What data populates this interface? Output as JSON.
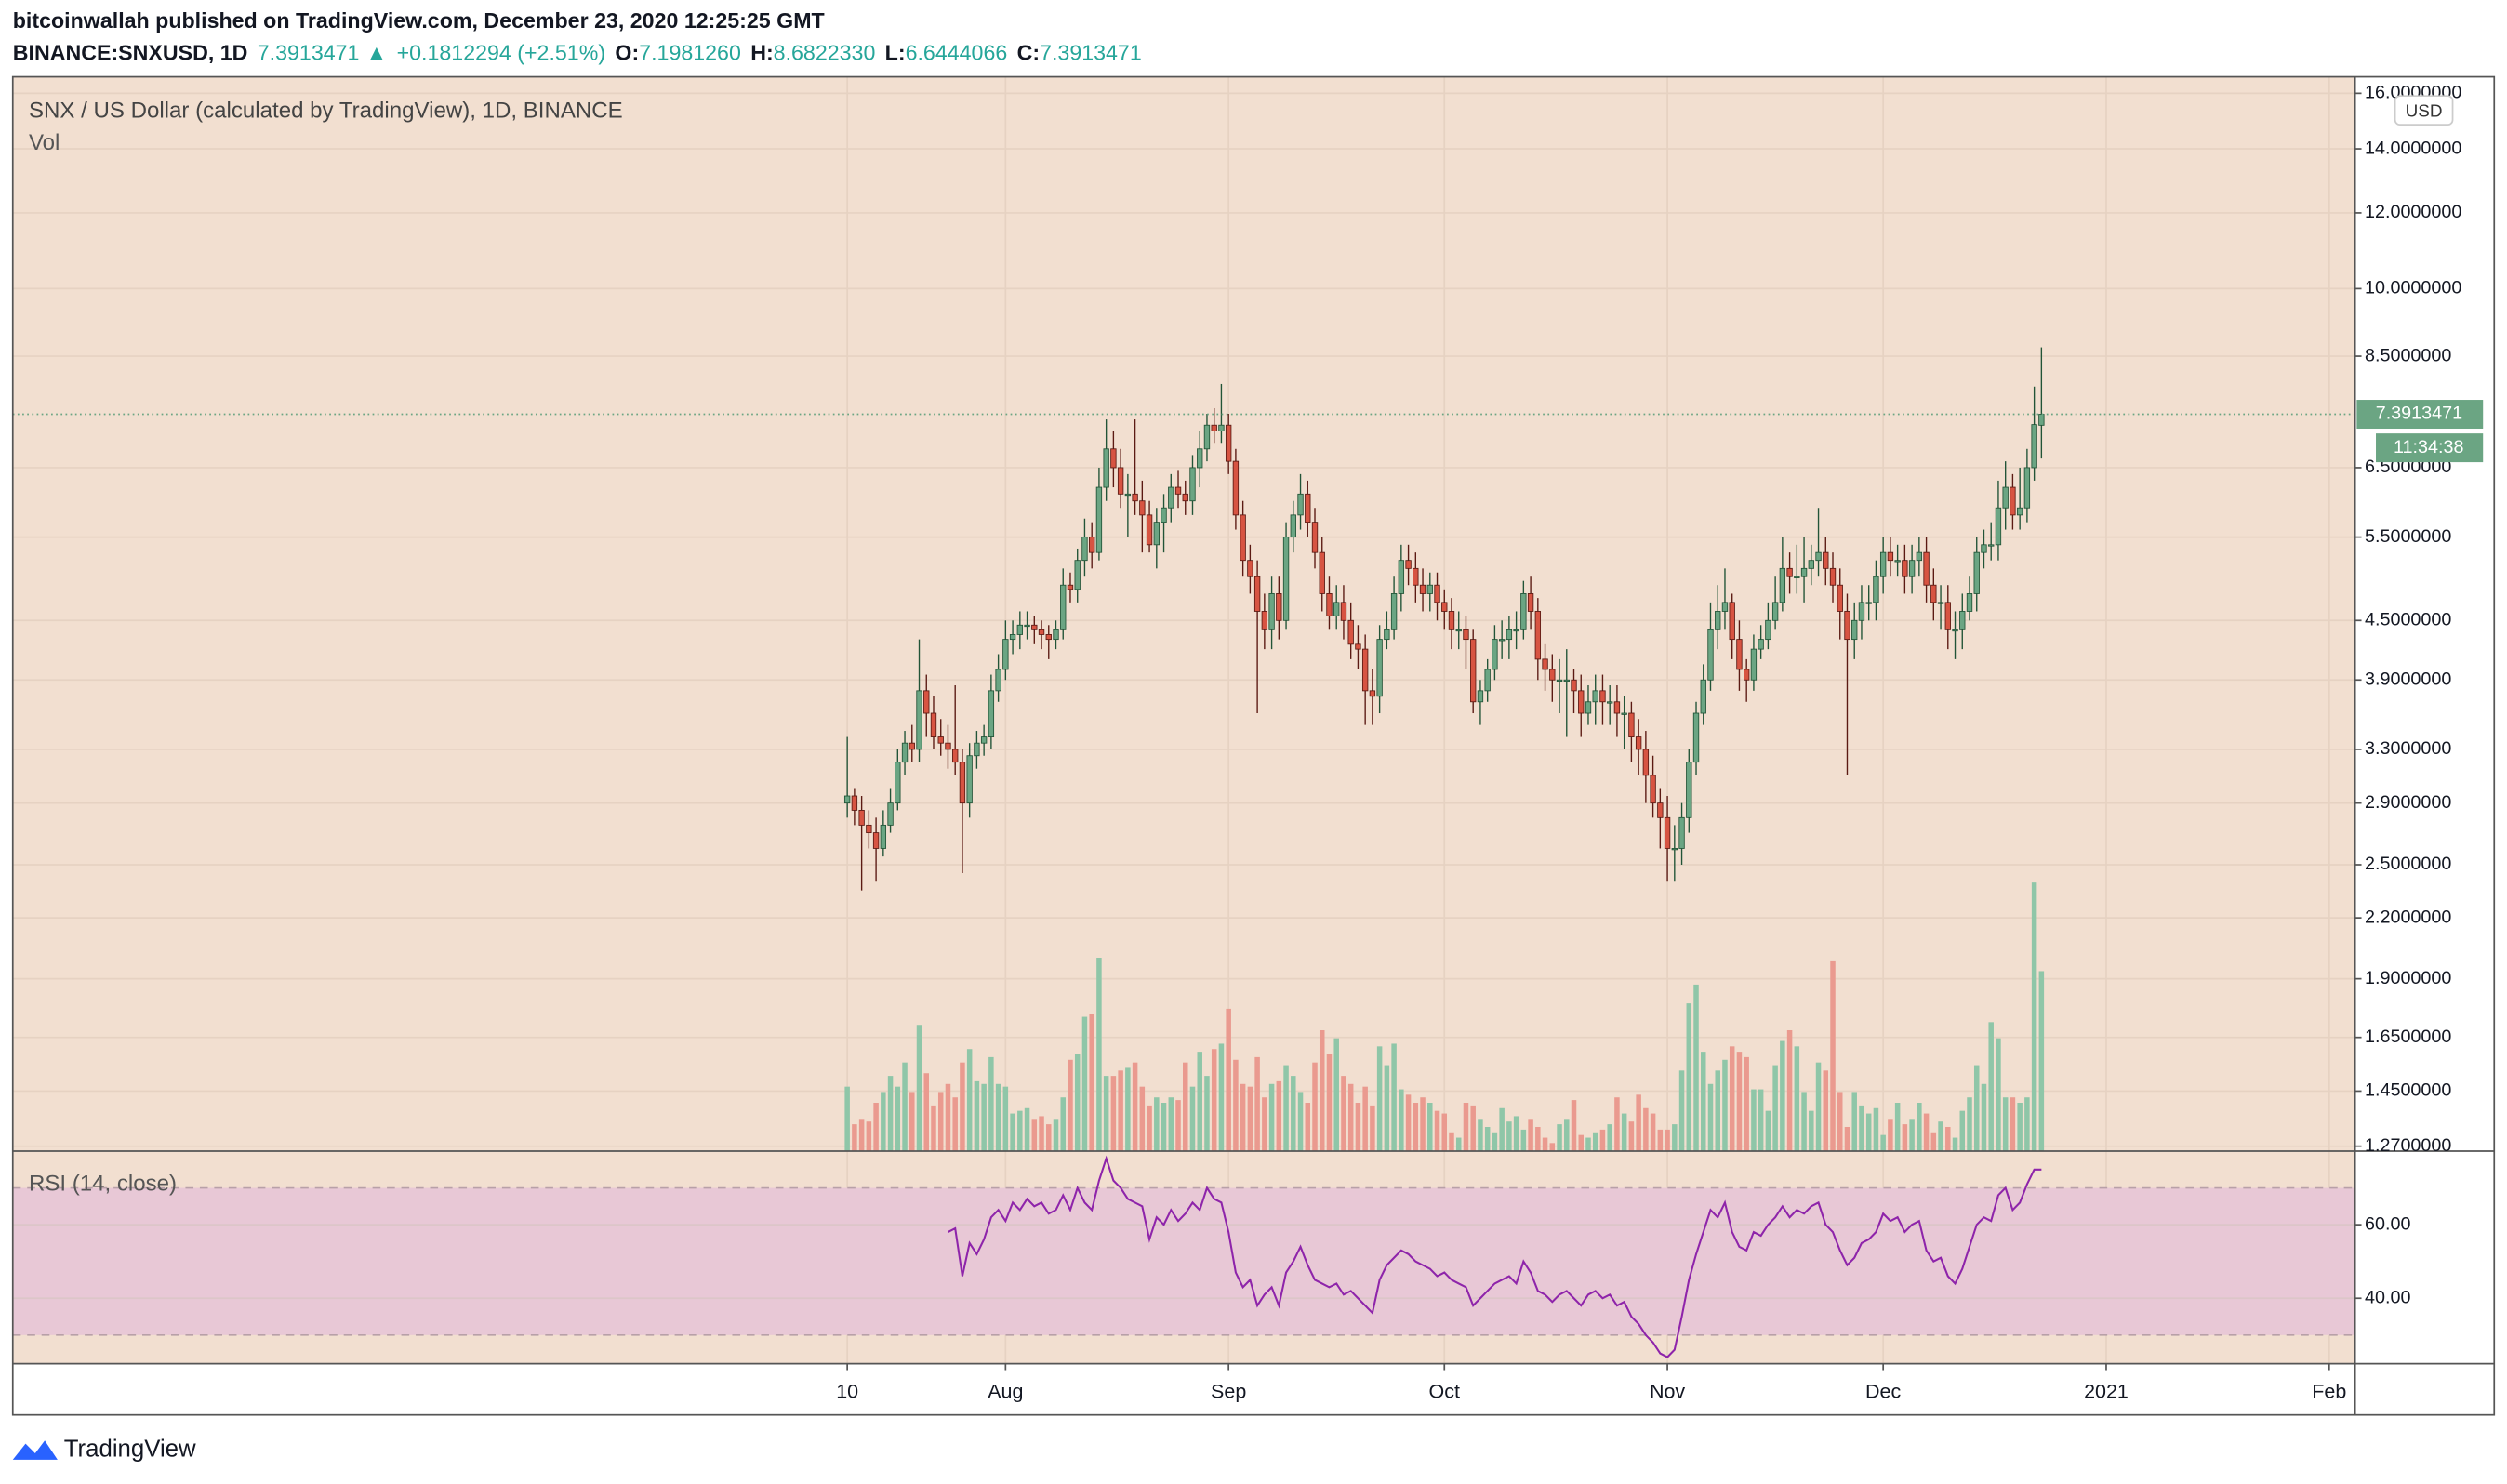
{
  "header": {
    "publisher": "bitcoinwallah published on TradingView.com, December 23, 2020 12:25:25 GMT",
    "symbol": "BINANCE:SNXUSD, 1D",
    "last": "7.3913471",
    "arrow": "▲",
    "change": "+0.1812294 (+2.51%)",
    "o_label": "O:",
    "o": "7.1981260",
    "h_label": "H:",
    "h": "8.6822330",
    "l_label": "L:",
    "l": "6.6444066",
    "c_label": "C:",
    "c": "7.3913471"
  },
  "footer": {
    "brand": "TradingView"
  },
  "chart_data": {
    "type": "candlestick",
    "title": "SNX / US Dollar (calculated by TradingView), 1D, BINANCE",
    "currency": "USD",
    "countdown": "11:34:38",
    "up_color": "#6ba583",
    "down_color": "#d75442",
    "log_scale": true,
    "grid": true,
    "x": [
      0,
      1,
      2,
      3,
      4,
      5,
      6,
      7,
      8,
      9,
      10,
      11,
      12,
      13,
      14,
      15,
      16,
      17,
      18,
      19,
      20,
      21,
      22,
      23,
      24,
      25,
      26,
      27,
      28,
      29,
      30,
      31,
      32,
      33,
      34,
      35,
      36,
      37,
      38,
      39,
      40,
      41,
      42,
      43,
      44,
      45,
      46,
      47,
      48,
      49,
      50,
      51,
      52,
      53,
      54,
      55,
      56,
      57,
      58,
      59,
      60,
      61,
      62,
      63,
      64,
      65,
      66,
      67,
      68,
      69,
      70,
      71,
      72,
      73,
      74,
      75,
      76,
      77,
      78,
      79,
      80,
      81,
      82,
      83,
      84,
      85,
      86,
      87,
      88,
      89,
      90,
      91,
      92,
      93,
      94,
      95,
      96,
      97,
      98,
      99,
      100,
      101,
      102,
      103,
      104,
      105,
      106,
      107,
      108,
      109,
      110,
      111,
      112,
      113,
      114,
      115,
      116,
      117,
      118,
      119,
      120,
      121,
      122,
      123,
      124,
      125,
      126,
      127,
      128,
      129,
      130,
      131,
      132,
      133,
      134,
      135,
      136,
      137,
      138,
      139,
      140,
      141,
      142,
      143,
      144,
      145,
      146,
      147,
      148,
      149,
      150,
      151,
      152,
      153,
      154,
      155,
      156,
      157,
      158,
      159,
      160,
      161,
      162,
      163,
      164,
      165,
      166
    ],
    "open": [
      2.9,
      2.95,
      2.85,
      2.75,
      2.7,
      2.6,
      2.75,
      2.9,
      3.2,
      3.35,
      3.3,
      3.8,
      3.6,
      3.4,
      3.35,
      3.3,
      3.2,
      2.9,
      3.25,
      3.35,
      3.4,
      3.8,
      4.0,
      4.3,
      4.35,
      4.45,
      4.45,
      4.4,
      4.35,
      4.3,
      4.4,
      4.9,
      4.85,
      5.2,
      5.5,
      5.3,
      6.2,
      6.8,
      6.5,
      6.1,
      6.1,
      6.0,
      5.8,
      5.4,
      5.7,
      5.9,
      6.2,
      6.1,
      6.0,
      6.5,
      6.8,
      7.2,
      7.1,
      7.2,
      6.6,
      5.8,
      5.2,
      5.0,
      4.6,
      4.4,
      4.8,
      4.5,
      5.5,
      5.8,
      6.1,
      5.7,
      5.3,
      4.8,
      4.55,
      4.7,
      4.5,
      4.25,
      4.2,
      3.8,
      3.75,
      4.3,
      4.4,
      4.8,
      5.2,
      5.1,
      4.9,
      4.8,
      4.9,
      4.7,
      4.6,
      4.4,
      4.4,
      4.3,
      3.7,
      3.8,
      4.0,
      4.3,
      4.3,
      4.4,
      4.4,
      4.8,
      4.6,
      4.1,
      4.0,
      3.9,
      3.9,
      3.9,
      3.8,
      3.6,
      3.7,
      3.8,
      3.7,
      3.7,
      3.6,
      3.6,
      3.4,
      3.3,
      3.1,
      2.9,
      2.8,
      2.6,
      2.6,
      2.8,
      3.2,
      3.6,
      3.9,
      4.4,
      4.6,
      4.7,
      4.3,
      4.0,
      3.9,
      4.2,
      4.3,
      4.5,
      4.7,
      5.1,
      5.0,
      5.0,
      5.1,
      5.2,
      5.3,
      5.1,
      4.9,
      4.6,
      4.3,
      4.5,
      4.7,
      4.7,
      5.0,
      5.3,
      5.2,
      5.2,
      5.0,
      5.2,
      5.3,
      4.9,
      4.7,
      4.7,
      4.4,
      4.4,
      4.6,
      4.8,
      5.3,
      5.4,
      5.4,
      5.9,
      6.2,
      5.8,
      5.9,
      6.5,
      7.198126
    ],
    "high": [
      3.4,
      3.0,
      2.95,
      2.85,
      2.8,
      2.85,
      3.0,
      3.3,
      3.45,
      3.5,
      4.3,
      3.95,
      3.75,
      3.55,
      3.5,
      3.85,
      3.3,
      3.35,
      3.45,
      3.5,
      3.95,
      4.15,
      4.5,
      4.5,
      4.6,
      4.6,
      4.55,
      4.5,
      4.45,
      4.5,
      5.1,
      5.05,
      5.35,
      5.75,
      5.7,
      6.5,
      7.3,
      7.1,
      6.8,
      6.4,
      7.3,
      6.3,
      6.0,
      5.9,
      6.1,
      6.4,
      6.45,
      6.3,
      6.7,
      7.1,
      7.4,
      7.5,
      7.95,
      7.4,
      6.8,
      6.0,
      5.4,
      5.2,
      4.8,
      5.0,
      5.0,
      5.7,
      6.0,
      6.4,
      6.3,
      5.9,
      5.5,
      5.0,
      4.9,
      4.9,
      4.7,
      4.45,
      4.35,
      4.0,
      4.45,
      4.6,
      5.0,
      5.4,
      5.4,
      5.3,
      5.1,
      5.05,
      5.05,
      4.85,
      4.75,
      4.6,
      4.55,
      4.4,
      3.9,
      4.1,
      4.45,
      4.5,
      4.55,
      4.6,
      4.95,
      5.0,
      4.75,
      4.25,
      4.15,
      4.1,
      4.2,
      4.0,
      3.95,
      3.85,
      3.95,
      3.95,
      3.85,
      3.85,
      3.75,
      3.7,
      3.55,
      3.45,
      3.25,
      3.0,
      2.95,
      2.75,
      2.9,
      3.3,
      3.7,
      4.05,
      4.7,
      4.9,
      5.1,
      4.8,
      4.5,
      4.1,
      4.35,
      4.45,
      4.7,
      5.0,
      5.5,
      5.3,
      5.4,
      5.5,
      5.4,
      5.9,
      5.5,
      5.3,
      5.1,
      4.8,
      4.7,
      4.9,
      4.9,
      5.2,
      5.5,
      5.5,
      5.4,
      5.4,
      5.4,
      5.5,
      5.5,
      5.1,
      4.9,
      4.9,
      4.6,
      4.8,
      5.0,
      5.5,
      5.6,
      5.7,
      6.3,
      6.6,
      6.4,
      6.5,
      6.8,
      7.9,
      8.682233
    ],
    "low": [
      2.8,
      2.75,
      2.35,
      2.6,
      2.4,
      2.55,
      2.7,
      2.85,
      3.1,
      3.2,
      3.2,
      3.4,
      3.3,
      3.25,
      3.15,
      3.1,
      2.45,
      2.8,
      3.15,
      3.25,
      3.3,
      3.7,
      3.9,
      4.15,
      4.2,
      4.3,
      4.25,
      4.2,
      4.1,
      4.2,
      4.3,
      4.7,
      4.7,
      5.0,
      5.1,
      5.2,
      6.0,
      6.2,
      5.9,
      5.5,
      5.8,
      5.3,
      5.3,
      5.1,
      5.3,
      5.7,
      5.9,
      5.8,
      5.8,
      6.2,
      6.6,
      6.9,
      6.9,
      6.4,
      5.6,
      5.0,
      4.8,
      3.6,
      4.2,
      4.2,
      4.3,
      4.4,
      5.3,
      5.6,
      5.5,
      5.1,
      4.6,
      4.4,
      4.4,
      4.3,
      4.1,
      4.0,
      3.5,
      3.5,
      3.6,
      4.2,
      4.3,
      4.6,
      4.9,
      4.7,
      4.6,
      4.6,
      4.5,
      4.4,
      4.2,
      4.2,
      4.0,
      3.6,
      3.5,
      3.7,
      3.9,
      4.1,
      4.1,
      4.2,
      4.3,
      4.4,
      3.9,
      3.8,
      3.7,
      3.6,
      3.4,
      3.6,
      3.4,
      3.5,
      3.5,
      3.5,
      3.5,
      3.4,
      3.3,
      3.2,
      3.1,
      2.9,
      2.8,
      2.6,
      2.4,
      2.4,
      2.5,
      2.7,
      3.1,
      3.5,
      3.8,
      4.2,
      4.4,
      4.1,
      3.8,
      3.7,
      3.8,
      4.1,
      4.2,
      4.4,
      4.6,
      4.8,
      4.8,
      4.7,
      4.9,
      5.0,
      4.9,
      4.7,
      4.3,
      3.1,
      4.1,
      4.3,
      4.5,
      4.5,
      4.8,
      5.0,
      5.0,
      4.8,
      4.8,
      5.0,
      4.7,
      4.5,
      4.4,
      4.2,
      4.1,
      4.2,
      4.5,
      4.6,
      5.1,
      5.2,
      5.2,
      5.6,
      5.6,
      5.6,
      5.7,
      6.3,
      6.6444066
    ],
    "close": [
      2.95,
      2.85,
      2.75,
      2.7,
      2.6,
      2.75,
      2.9,
      3.2,
      3.35,
      3.3,
      3.8,
      3.6,
      3.4,
      3.35,
      3.3,
      3.2,
      2.9,
      3.25,
      3.35,
      3.4,
      3.8,
      4.0,
      4.3,
      4.35,
      4.45,
      4.45,
      4.4,
      4.35,
      4.3,
      4.4,
      4.9,
      4.85,
      5.2,
      5.5,
      5.3,
      6.2,
      6.8,
      6.5,
      6.1,
      6.1,
      6.0,
      5.8,
      5.4,
      5.7,
      5.9,
      6.2,
      6.1,
      6.0,
      6.5,
      6.8,
      7.2,
      7.1,
      7.2,
      6.6,
      5.8,
      5.2,
      5.0,
      4.6,
      4.4,
      4.8,
      4.5,
      5.5,
      5.8,
      6.1,
      5.7,
      5.3,
      4.8,
      4.55,
      4.7,
      4.5,
      4.25,
      4.2,
      3.8,
      3.75,
      4.3,
      4.4,
      4.8,
      5.2,
      5.1,
      4.9,
      4.8,
      4.9,
      4.7,
      4.6,
      4.4,
      4.4,
      4.3,
      3.7,
      3.8,
      4.0,
      4.3,
      4.3,
      4.4,
      4.4,
      4.8,
      4.6,
      4.1,
      4.0,
      3.9,
      3.9,
      3.9,
      3.8,
      3.6,
      3.7,
      3.8,
      3.7,
      3.7,
      3.6,
      3.6,
      3.4,
      3.3,
      3.1,
      2.9,
      2.8,
      2.6,
      2.6,
      2.8,
      3.2,
      3.6,
      3.9,
      4.4,
      4.6,
      4.7,
      4.3,
      4.0,
      3.9,
      4.2,
      4.3,
      4.5,
      4.7,
      5.1,
      5.0,
      5.0,
      5.1,
      5.2,
      5.3,
      5.1,
      4.9,
      4.6,
      4.3,
      4.5,
      4.7,
      4.7,
      5.0,
      5.3,
      5.2,
      5.2,
      5.0,
      5.2,
      5.3,
      4.9,
      4.7,
      4.7,
      4.4,
      4.4,
      4.6,
      4.8,
      5.3,
      5.4,
      5.4,
      5.9,
      6.2,
      5.8,
      5.9,
      6.5,
      7.21,
      7.3913471
    ],
    "ylim": [
      1.255,
      16.65
    ],
    "yticks": [
      {
        "value": 16,
        "label": "16.0000000"
      },
      {
        "value": 14,
        "label": "14.0000000"
      },
      {
        "value": 12,
        "label": "12.0000000"
      },
      {
        "value": 10,
        "label": "10.0000000"
      },
      {
        "value": 8.5,
        "label": "8.5000000"
      },
      {
        "value": 6.5,
        "label": "6.5000000"
      },
      {
        "value": 5.5,
        "label": "5.5000000"
      },
      {
        "value": 4.5,
        "label": "4.5000000"
      },
      {
        "value": 3.9,
        "label": "3.9000000"
      },
      {
        "value": 3.3,
        "label": "3.3000000"
      },
      {
        "value": 2.9,
        "label": "2.9000000"
      },
      {
        "value": 2.5,
        "label": "2.5000000"
      },
      {
        "value": 2.2,
        "label": "2.2000000"
      },
      {
        "value": 1.9,
        "label": "1.9000000"
      },
      {
        "value": 1.65,
        "label": "1.6500000"
      },
      {
        "value": 1.45,
        "label": "1.4500000"
      },
      {
        "value": 1.27,
        "label": "1.2700000"
      }
    ],
    "xlim": [
      -116,
      209.6
    ],
    "xticks": [
      {
        "value": 0,
        "label": "10"
      },
      {
        "value": 22,
        "label": "Aug"
      },
      {
        "value": 53,
        "label": "Sep"
      },
      {
        "value": 83,
        "label": "Oct"
      },
      {
        "value": 114,
        "label": "Nov"
      },
      {
        "value": 144,
        "label": "Dec"
      },
      {
        "value": 175,
        "label": "2021"
      },
      {
        "value": 206,
        "label": "Feb"
      }
    ],
    "volume": {
      "label": "Vol",
      "up_color": "#8fc6a8",
      "down_color": "#ea9a8f",
      "ylim": [
        0,
        400
      ],
      "values": [
        24,
        10,
        12,
        11,
        18,
        22,
        28,
        24,
        33,
        22,
        47,
        29,
        17,
        22,
        25,
        20,
        33,
        38,
        26,
        25,
        35,
        25,
        24,
        14,
        15,
        16,
        12,
        13,
        10,
        12,
        20,
        34,
        36,
        50,
        51,
        72,
        28,
        28,
        30,
        31,
        33,
        24,
        17,
        20,
        18,
        20,
        19,
        33,
        24,
        37,
        28,
        38,
        40,
        53,
        34,
        25,
        24,
        35,
        20,
        25,
        26,
        32,
        28,
        22,
        18,
        33,
        45,
        36,
        42,
        28,
        25,
        18,
        24,
        17,
        39,
        32,
        40,
        23,
        21,
        18,
        20,
        18,
        15,
        14,
        7,
        5,
        18,
        17,
        12,
        9,
        7,
        16,
        11,
        13,
        8,
        12,
        9,
        5,
        3,
        10,
        12,
        19,
        6,
        5,
        7,
        8,
        10,
        20,
        14,
        11,
        21,
        16,
        14,
        8,
        8,
        10,
        30,
        55,
        62,
        37,
        25,
        30,
        34,
        39,
        37,
        35,
        23,
        23,
        15,
        32,
        41,
        45,
        39,
        22,
        15,
        33,
        30,
        71,
        22,
        9,
        22,
        17,
        14,
        16,
        6,
        12,
        18,
        10,
        12,
        18,
        14,
        7,
        11,
        9,
        5,
        15,
        20,
        32,
        25,
        48,
        42,
        20,
        20,
        18,
        20,
        100,
        67
      ]
    },
    "rsi": {
      "label": "RSI (14, close)",
      "color": "#8e24aa",
      "band": [
        30,
        70
      ],
      "ylim": [
        22.2,
        80
      ],
      "yticks": [
        {
          "value": 60,
          "label": "60.00"
        },
        {
          "value": 40,
          "label": "40.00"
        }
      ],
      "values": [
        null,
        null,
        null,
        null,
        null,
        null,
        null,
        null,
        null,
        null,
        null,
        null,
        null,
        null,
        58,
        59,
        46,
        55,
        52,
        56,
        62,
        64,
        61,
        66,
        64,
        67,
        65,
        66,
        63,
        64,
        68,
        64,
        70,
        66,
        64,
        72,
        78,
        72,
        70,
        67,
        66,
        65,
        56,
        62,
        60,
        64,
        61,
        63,
        66,
        64,
        70,
        67,
        66,
        58,
        47,
        43,
        45,
        38,
        41,
        43,
        38,
        47,
        50,
        54,
        49,
        45,
        44,
        43,
        44,
        41,
        42,
        40,
        38,
        36,
        45,
        49,
        51,
        53,
        52,
        50,
        49,
        48,
        46,
        47,
        45,
        44,
        43,
        38,
        40,
        42,
        44,
        45,
        46,
        44,
        50,
        47,
        42,
        41,
        39,
        41,
        42,
        40,
        38,
        41,
        42,
        40,
        41,
        38,
        39,
        35,
        33,
        30,
        28,
        25,
        24,
        26,
        35,
        45,
        52,
        58,
        64,
        62,
        66,
        58,
        54,
        53,
        58,
        57,
        60,
        62,
        65,
        62,
        64,
        63,
        65,
        66,
        60,
        58,
        53,
        49,
        51,
        55,
        56,
        58,
        63,
        61,
        62,
        58,
        60,
        61,
        53,
        50,
        51,
        46,
        44,
        48,
        54,
        60,
        62,
        61,
        68,
        70,
        64,
        66,
        71,
        75,
        75
      ]
    }
  }
}
